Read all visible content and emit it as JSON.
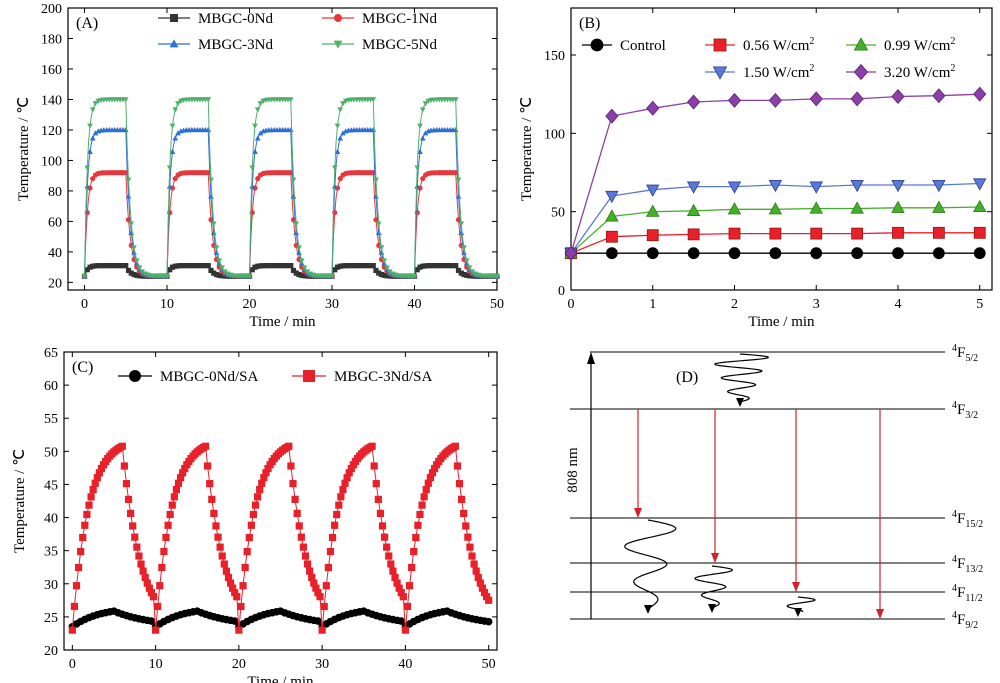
{
  "chart_data": [
    {
      "panel": "(A)",
      "type": "line",
      "xlabel": "Time / min",
      "ylabel": "Temperature / ℃",
      "xlim": [
        -2,
        50
      ],
      "ylim": [
        15,
        200
      ],
      "xticks": [
        0,
        10,
        20,
        30,
        40,
        50
      ],
      "yticks": [
        20,
        40,
        60,
        80,
        100,
        120,
        140,
        160,
        180,
        200
      ],
      "legend_position": "top",
      "series": [
        {
          "name": "MBGC-0Nd",
          "color": "#333333",
          "marker": "square",
          "base": 24,
          "peak": 31,
          "start": [
            0,
            10,
            20,
            30,
            40
          ],
          "on_duration": 5
        },
        {
          "name": "MBGC-1Nd",
          "color": "#e8363a",
          "marker": "circle",
          "base": 24,
          "peak": 92,
          "start": [
            0,
            10,
            20,
            30,
            40
          ],
          "on_duration": 5
        },
        {
          "name": "MBGC-3Nd",
          "color": "#2f6ed3",
          "marker": "triangle-up",
          "base": 24,
          "peak": 120,
          "start": [
            0,
            10,
            20,
            30,
            40
          ],
          "on_duration": 5
        },
        {
          "name": "MBGC-5Nd",
          "color": "#4fb06c",
          "marker": "triangle-down",
          "base": 24,
          "peak": 140,
          "start": [
            0,
            10,
            20,
            30,
            40
          ],
          "on_duration": 5
        }
      ]
    },
    {
      "panel": "(B)",
      "type": "line",
      "xlabel": "Time / min",
      "ylabel": "Temperature / ℃",
      "xlim": [
        0,
        5.15
      ],
      "ylim": [
        0,
        180
      ],
      "xticks": [
        0,
        1,
        2,
        3,
        4,
        5
      ],
      "yticks": [
        0,
        50,
        100,
        150
      ],
      "legend_position": "top",
      "x": [
        0,
        0.5,
        1,
        1.5,
        2,
        2.5,
        3,
        3.5,
        4,
        4.5,
        5
      ],
      "series": [
        {
          "name": "Control",
          "color": "#000000",
          "marker": "circle",
          "values": [
            23.5,
            23.5,
            23.5,
            23.5,
            23.5,
            23.5,
            23.5,
            23.5,
            23.5,
            23.5,
            23.5
          ]
        },
        {
          "name": "0.56 W/cm²",
          "color": "#e8202a",
          "marker": "square",
          "values": [
            23.5,
            34,
            35,
            35.5,
            36,
            36,
            36,
            36,
            36.5,
            36.5,
            36.5
          ]
        },
        {
          "name": "0.99 W/cm²",
          "color": "#44b02a",
          "marker": "triangle-up",
          "values": [
            23.5,
            47,
            50,
            50.5,
            51.5,
            51.5,
            52,
            52,
            52.5,
            52.5,
            53
          ]
        },
        {
          "name": "1.50 W/cm²",
          "color": "#5a78d8",
          "marker": "triangle-down",
          "values": [
            23.5,
            60,
            64,
            66,
            66,
            67,
            66,
            67,
            67,
            67,
            68
          ]
        },
        {
          "name": "3.20 W/cm²",
          "color": "#8b3fa8",
          "marker": "diamond",
          "values": [
            23.5,
            111,
            116,
            120,
            121,
            121,
            122,
            122,
            123.5,
            124,
            125
          ]
        }
      ]
    },
    {
      "panel": "(C)",
      "type": "line",
      "xlabel": "Time / min",
      "ylabel": "Temperature / ℃",
      "xlim": [
        -1,
        51
      ],
      "ylim": [
        20,
        65
      ],
      "xticks": [
        0,
        10,
        20,
        30,
        40,
        50
      ],
      "yticks": [
        20,
        25,
        30,
        35,
        40,
        45,
        50,
        55,
        60,
        65
      ],
      "legend_position": "top",
      "series": [
        {
          "name": "MBGC-0Nd/SA",
          "color": "#000000",
          "marker": "circle",
          "base": 23.5,
          "peak": 26.5,
          "start": [
            0,
            10,
            20,
            30,
            40
          ],
          "on_duration": 5
        },
        {
          "name": "MBGC-3Nd/SA",
          "color": "#e8202a",
          "marker": "square",
          "base": 23,
          "peak": 52,
          "start": [
            0,
            10,
            20,
            30,
            40
          ],
          "on_duration": 6
        }
      ]
    },
    {
      "panel": "(D)",
      "type": "diagram",
      "pump_label": "808 nm",
      "levels": [
        {
          "term": "4",
          "name": "F",
          "sub": "5/2"
        },
        {
          "term": "4",
          "name": "F",
          "sub": "3/2"
        },
        {
          "term": "4",
          "name": "F",
          "sub": "15/2"
        },
        {
          "term": "4",
          "name": "F",
          "sub": "13/2"
        },
        {
          "term": "4",
          "name": "F",
          "sub": "11/2"
        },
        {
          "term": "4",
          "name": "F",
          "sub": "9/2"
        }
      ],
      "arrow_color": "#d4212a"
    }
  ]
}
